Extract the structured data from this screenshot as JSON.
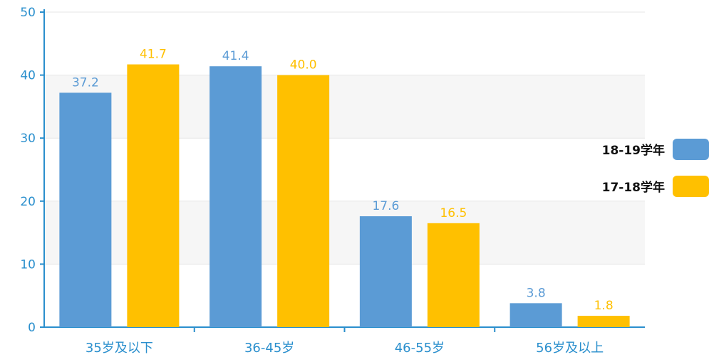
{
  "chart_data": {
    "type": "bar",
    "categories": [
      "35岁及以下",
      "36-45岁",
      "46-55岁",
      "56岁及以上"
    ],
    "series": [
      {
        "name": "18-19学年",
        "values": [
          37.2,
          41.4,
          17.6,
          3.8
        ],
        "labels": [
          "37.2",
          "41.4",
          "17.6",
          "3.8"
        ],
        "color": "#5b9bd5"
      },
      {
        "name": "17-18学年",
        "values": [
          41.7,
          40.0,
          16.5,
          1.8
        ],
        "labels": [
          "41.7",
          "40.0",
          "16.5",
          "1.8"
        ],
        "color": "#ffc000"
      }
    ],
    "yticks": [
      "0",
      "10",
      "20",
      "30",
      "40",
      "50"
    ],
    "ylim": [
      0,
      50
    ],
    "legend_position": "right",
    "grid": true,
    "axis_color": "#2a8fcd"
  }
}
